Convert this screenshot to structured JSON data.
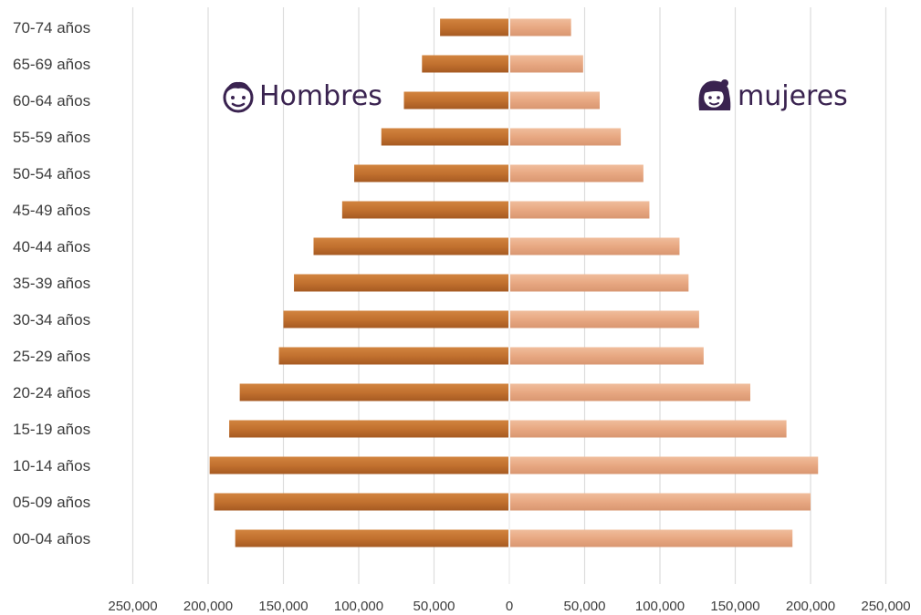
{
  "chart_data": {
    "type": "bar",
    "orientation": "horizontal",
    "layout": "population-pyramid",
    "categories": [
      "70-74 años",
      "65-69 años",
      "60-64 años",
      "55-59 años",
      "50-54 años",
      "45-49 años",
      "40-44 años",
      "35-39 años",
      "30-34 años",
      "25-29 años",
      "20-24 años",
      "15-19 años",
      "10-14 años",
      "05-09 años",
      "00-04 años"
    ],
    "series": [
      {
        "name": "Hombres",
        "side": "left",
        "color": "#c2712f",
        "values": [
          46000,
          58000,
          70000,
          85000,
          103000,
          111000,
          130000,
          143000,
          150000,
          153000,
          179000,
          186000,
          199000,
          196000,
          182000
        ]
      },
      {
        "name": "mujeres",
        "side": "right",
        "color": "#e8a882",
        "values": [
          41000,
          49000,
          60000,
          74000,
          89000,
          93000,
          113000,
          119000,
          126000,
          129000,
          160000,
          184000,
          205000,
          200000,
          188000
        ]
      }
    ],
    "xticks": [
      "250,000",
      "200,000",
      "150,000",
      "100,000",
      "50,000",
      "0",
      "50,000",
      "100,000",
      "150,000",
      "200,000",
      "250,000"
    ],
    "xlim": [
      -250000,
      250000
    ],
    "grid": "vertical",
    "legend_placement": "top-inside"
  },
  "legend": {
    "men_label": "Hombres",
    "women_label": "mujeres",
    "men_icon": "boy-face-icon",
    "women_icon": "girl-face-icon"
  }
}
